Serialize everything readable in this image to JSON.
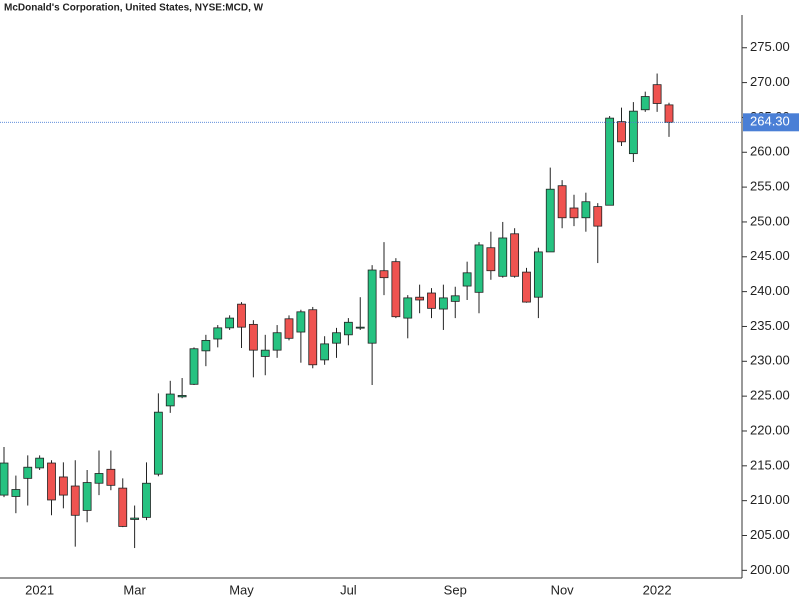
{
  "chart_data": {
    "type": "candlestick",
    "title": "McDonald's Corporation, United States, NYSE:MCD, W",
    "categories": [
      null,
      null,
      null,
      "2021",
      null,
      null,
      null,
      null,
      null,
      null,
      null,
      "Mar",
      null,
      null,
      null,
      null,
      null,
      null,
      null,
      null,
      "May",
      null,
      null,
      null,
      null,
      null,
      null,
      null,
      null,
      "Jul",
      null,
      null,
      null,
      null,
      null,
      null,
      null,
      null,
      "Sep",
      null,
      null,
      null,
      null,
      null,
      null,
      null,
      null,
      "Nov",
      null,
      null,
      null,
      null,
      null,
      null,
      null,
      "2022",
      null
    ],
    "open": [
      210.8,
      210.6,
      213.2,
      214.7,
      215.4,
      213.4,
      212.1,
      208.6,
      212.5,
      214.5,
      211.8,
      207.3,
      207.6,
      213.8,
      223.6,
      224.9,
      226.7,
      231.5,
      233.2,
      234.8,
      238.2,
      235.3,
      230.7,
      231.6,
      236.1,
      234.2,
      237.4,
      230.2,
      232.6,
      233.8,
      234.8,
      232.6,
      243.0,
      244.3,
      236.2,
      239.2,
      239.8,
      237.5,
      238.6,
      240.8,
      239.9,
      246.3,
      242.2,
      248.3,
      242.8,
      239.2,
      245.7,
      255.2,
      252.0,
      250.6,
      252.2,
      252.4,
      264.4,
      259.8,
      266.1,
      269.7,
      266.8
    ],
    "high": [
      217.7,
      213.6,
      216.5,
      216.5,
      215.8,
      215.5,
      215.8,
      214.4,
      217.2,
      217.2,
      213.2,
      209.3,
      215.5,
      225.4,
      227.2,
      227.6,
      232.0,
      233.8,
      235.2,
      236.6,
      238.5,
      235.9,
      233.8,
      235.2,
      236.6,
      237.4,
      237.8,
      233.6,
      234.8,
      236.2,
      239.2,
      243.8,
      247.1,
      244.8,
      239.5,
      241.0,
      240.5,
      241.0,
      240.7,
      244.3,
      247.1,
      248.6,
      250.0,
      249.1,
      243.4,
      246.3,
      257.8,
      256.0,
      253.9,
      254.2,
      252.7,
      265.2,
      266.4,
      267.2,
      268.7,
      271.3,
      267.1
    ],
    "low": [
      210.5,
      208.2,
      209.3,
      214.4,
      207.9,
      208.9,
      203.4,
      206.9,
      210.8,
      211.5,
      206.2,
      203.2,
      207.2,
      213.5,
      222.6,
      224.7,
      226.6,
      229.3,
      232.0,
      234.5,
      231.9,
      227.7,
      228.0,
      230.5,
      233.0,
      229.8,
      229.0,
      229.5,
      230.5,
      232.3,
      234.5,
      226.6,
      239.5,
      236.2,
      233.3,
      236.9,
      236.2,
      234.5,
      236.2,
      238.8,
      236.9,
      241.7,
      242.0,
      242.0,
      238.4,
      236.2,
      245.7,
      249.1,
      249.4,
      248.6,
      244.1,
      252.4,
      260.9,
      258.6,
      265.8,
      265.8,
      262.2
    ],
    "close": [
      215.4,
      211.6,
      214.8,
      216.1,
      210.1,
      210.8,
      207.9,
      212.6,
      213.9,
      212.2,
      206.3,
      207.5,
      212.5,
      222.7,
      225.3,
      225.1,
      231.8,
      233.0,
      234.8,
      236.2,
      234.9,
      231.6,
      231.6,
      234.1,
      233.3,
      237.1,
      229.5,
      232.5,
      234.1,
      235.6,
      234.9,
      243.1,
      242.0,
      236.4,
      239.1,
      238.8,
      237.6,
      239.1,
      239.4,
      242.7,
      246.7,
      243.0,
      247.7,
      242.2,
      238.5,
      245.7,
      254.7,
      250.6,
      250.6,
      252.9,
      249.4,
      264.9,
      261.5,
      265.9,
      268.0,
      267.0,
      264.3
    ],
    "up_color": "#26c281",
    "down_color": "#ef5350",
    "ylim": [
      198.9,
      279.7
    ],
    "yticks": [
      {
        "value": 200,
        "label": "200.00"
      },
      {
        "value": 205,
        "label": "205.00"
      },
      {
        "value": 210,
        "label": "210.00"
      },
      {
        "value": 215,
        "label": "215.00"
      },
      {
        "value": 220,
        "label": "220.00"
      },
      {
        "value": 225,
        "label": "225.00"
      },
      {
        "value": 230,
        "label": "230.00"
      },
      {
        "value": 235,
        "label": "235.00"
      },
      {
        "value": 240,
        "label": "240.00"
      },
      {
        "value": 245,
        "label": "245.00"
      },
      {
        "value": 250,
        "label": "250.00"
      },
      {
        "value": 255,
        "label": "255.00"
      },
      {
        "value": 260,
        "label": "260.00"
      },
      {
        "value": 265,
        "label": "265.00"
      },
      {
        "value": 270,
        "label": "270.00"
      },
      {
        "value": 275,
        "label": "275.00"
      }
    ],
    "last_price": {
      "value": 264.3,
      "label": "264.30",
      "color": "#4a7fd6"
    }
  }
}
